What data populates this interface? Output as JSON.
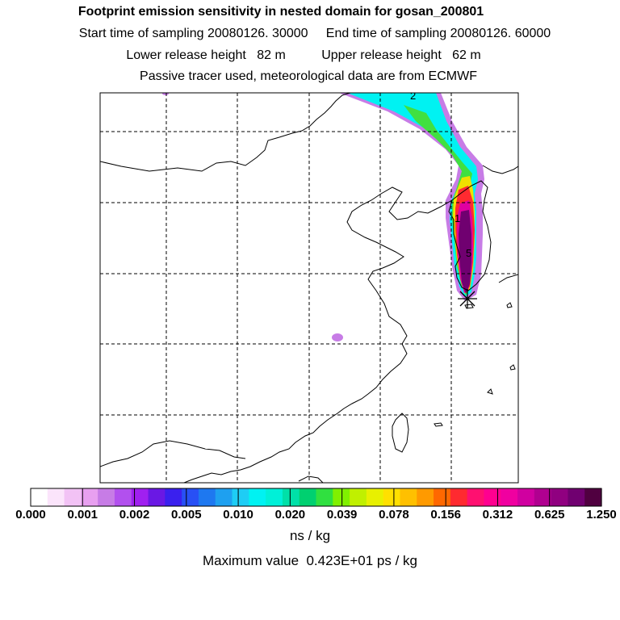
{
  "header": {
    "title": "Footprint emission sensitivity in nested domain for gosan_200801",
    "sampling_line": "Start time of sampling 20080126. 30000     End time of sampling 20080126. 60000",
    "release_line": "Lower release height   82 m          Upper release height   62 m",
    "tracer_line": "Passive tracer used, meteorological data are from ECMWF"
  },
  "map": {
    "station_marker": "receptor-star-icon",
    "contour_labels": [
      "2",
      "1",
      "5"
    ]
  },
  "colorbar": {
    "colors": [
      "#ffffff",
      "#fbe4fb",
      "#f2c2f5",
      "#e8a0f0",
      "#c77ce6",
      "#b250ee",
      "#a020f0",
      "#6a18e4",
      "#3a20ee",
      "#2850f5",
      "#1e78f0",
      "#1ea0f0",
      "#1ecdf5",
      "#00f2f2",
      "#00f0d8",
      "#00e0a8",
      "#00d070",
      "#30e040",
      "#80f000",
      "#c0f000",
      "#e8f000",
      "#ffe000",
      "#ffc000",
      "#ff9a00",
      "#ff6800",
      "#ff2a30",
      "#ff1070",
      "#ff0090",
      "#f000a0",
      "#d000a0",
      "#b00090",
      "#900080",
      "#700070",
      "#500040"
    ],
    "tick_labels": [
      "0.000",
      "0.001",
      "0.002",
      "0.005",
      "0.010",
      "0.020",
      "0.039",
      "0.078",
      "0.156",
      "0.312",
      "0.625",
      "1.250"
    ],
    "units": "ns / kg"
  },
  "footer": {
    "maximum_value": "Maximum value  0.423E+01 ps / kg"
  }
}
